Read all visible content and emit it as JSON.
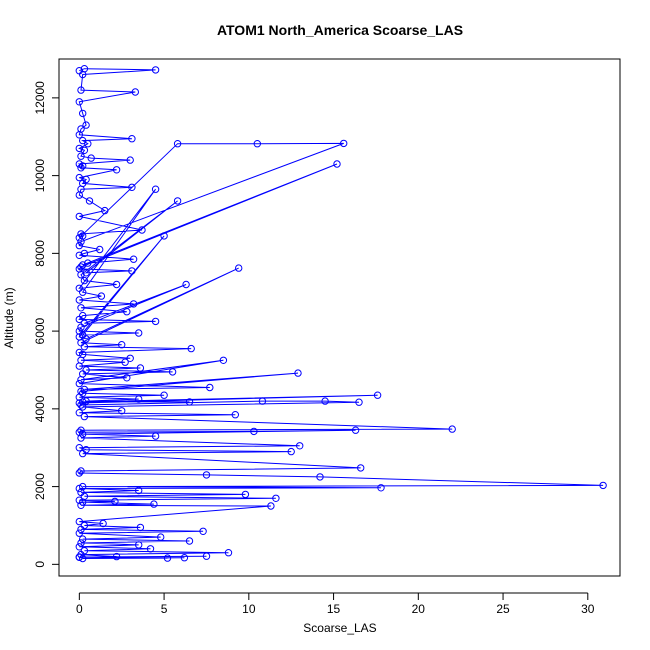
{
  "chart_data": {
    "type": "line",
    "title": "ATOM1 North_America Scoarse_LAS",
    "xlabel": "Scoarse_LAS",
    "ylabel": "Altitude (m)",
    "xlim": [
      -1.2,
      31.9
    ],
    "ylim": [
      -300,
      13000
    ],
    "xticks": [
      "0",
      "5",
      "10",
      "15",
      "20",
      "25",
      "30"
    ],
    "yticks": [
      "0",
      "2000",
      "4000",
      "6000",
      "8000",
      "10000",
      "12000"
    ],
    "grid": false,
    "legend": "none",
    "marker": "open-circle",
    "color": "#0000ff",
    "series": [
      {
        "x": [
          0.0,
          0.3,
          4.5,
          0.2,
          0.1,
          3.3,
          0.0,
          0.2,
          0.4,
          0.1,
          0.0,
          3.1,
          0.2,
          0.5,
          0.0,
          0.3,
          0.1,
          0.7,
          3.0,
          0.0,
          0.2,
          0.1,
          2.2,
          0.0,
          0.4,
          0.2,
          3.1,
          0.1,
          0.0,
          0.6,
          1.5,
          0.0,
          3.7,
          0.1,
          0.2,
          0.0,
          5.8,
          10.5,
          15.6,
          0.1,
          0.0,
          1.2,
          0.3,
          0.0,
          3.2,
          0.5,
          0.2,
          15.2,
          0.1,
          0.0,
          3.1,
          0.4,
          5.8,
          0.1,
          0.3,
          2.2,
          0.0,
          4.5,
          0.2,
          1.3,
          0.0,
          3.2,
          0.1,
          2.8,
          0.2,
          0.0,
          4.5,
          0.3,
          6.3,
          0.1,
          0.0,
          3.5,
          0.2,
          5.0,
          0.0,
          0.4,
          9.4,
          0.1,
          2.5,
          0.3,
          6.6,
          0.0,
          0.2,
          3.0,
          0.1,
          2.7,
          0.0,
          3.6,
          0.4,
          5.5,
          0.2,
          2.8,
          0.1,
          8.5,
          0.0,
          7.7,
          0.3,
          12.9,
          0.1,
          0.2,
          5.0,
          0.0,
          3.5,
          0.4,
          6.5,
          0.2,
          17.6,
          0.0,
          0.1,
          10.8,
          14.5,
          16.5,
          0.2,
          2.5,
          0.0,
          9.2,
          0.3,
          22.0,
          0.1,
          0.0,
          10.3,
          16.3,
          0.2,
          4.5,
          0.1,
          13.0,
          0.0,
          0.4,
          12.5,
          0.2,
          16.6,
          0.1,
          0.0,
          7.5,
          14.2,
          30.9,
          0.2,
          17.8,
          0.0,
          3.5,
          0.1,
          9.8,
          0.3,
          11.6,
          0.0,
          2.1,
          0.2,
          4.4,
          0.1,
          11.3,
          0.0,
          1.4,
          0.3,
          3.6,
          0.1,
          7.3,
          0.0,
          4.8,
          0.2,
          6.5,
          0.1,
          3.5,
          0.0,
          4.2,
          0.3,
          8.8,
          0.1,
          2.2,
          0.0,
          5.2,
          0.2,
          6.2,
          0.0,
          7.5
        ],
        "y": [
          12700,
          12750,
          12720,
          12600,
          12200,
          12150,
          11900,
          11600,
          11300,
          11200,
          11050,
          10950,
          10900,
          10820,
          10700,
          10650,
          10500,
          10450,
          10400,
          10300,
          10250,
          10200,
          10150,
          9950,
          9900,
          9800,
          9700,
          9650,
          9500,
          9350,
          9100,
          8950,
          8600,
          8500,
          8450,
          8400,
          10820,
          10820,
          10830,
          8300,
          8200,
          8100,
          8000,
          7950,
          7850,
          7750,
          7700,
          10300,
          7650,
          7600,
          7550,
          7500,
          9350,
          7450,
          7300,
          7200,
          7100,
          9650,
          7000,
          6900,
          6800,
          6700,
          6600,
          6500,
          6400,
          6300,
          6250,
          6200,
          7200,
          6100,
          6000,
          5950,
          5900,
          8450,
          5850,
          5800,
          7620,
          5700,
          5650,
          5600,
          5550,
          5450,
          5400,
          5300,
          5250,
          5200,
          5100,
          5050,
          5000,
          4950,
          4900,
          4800,
          4750,
          5250,
          4650,
          4550,
          4500,
          4920,
          4450,
          4400,
          4350,
          4300,
          4250,
          4200,
          4180,
          4180,
          4350,
          4150,
          4100,
          4200,
          4200,
          4170,
          4050,
          3950,
          3900,
          3850,
          3800,
          3480,
          3450,
          3400,
          3420,
          3450,
          3350,
          3300,
          3250,
          3050,
          3000,
          2950,
          2900,
          2850,
          2480,
          2400,
          2350,
          2300,
          2250,
          2030,
          2000,
          1970,
          1950,
          1900,
          1850,
          1800,
          1750,
          1700,
          1650,
          1620,
          1600,
          1550,
          1520,
          1500,
          1100,
          1050,
          1000,
          950,
          900,
          850,
          800,
          700,
          650,
          600,
          550,
          500,
          450,
          400,
          350,
          300,
          250,
          200,
          180,
          160,
          150,
          170,
          190,
          210
        ]
      }
    ]
  }
}
